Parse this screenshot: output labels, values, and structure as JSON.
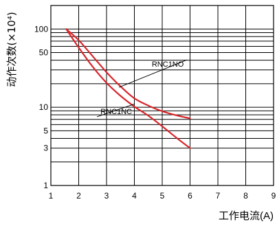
{
  "chart_data": {
    "type": "line",
    "title": "",
    "xlabel": "工作电流(A)",
    "ylabel": "动作次数(×10⁴)",
    "xlim": [
      1,
      9
    ],
    "ylim": [
      1,
      200
    ],
    "yscale": "log",
    "grid": true,
    "x_ticks": [
      "1",
      "2",
      "3",
      "4",
      "5",
      "6",
      "7",
      "8",
      "9"
    ],
    "y_ticks": [
      {
        "value": 1,
        "label": "1"
      },
      {
        "value": 3,
        "label": "3"
      },
      {
        "value": 5,
        "label": "5"
      },
      {
        "value": 10,
        "label": "10"
      },
      {
        "value": 50,
        "label": "50"
      },
      {
        "value": 100,
        "label": "100"
      }
    ],
    "y_minor_grid": [
      2,
      4,
      6,
      7,
      8,
      9,
      20,
      30,
      40,
      60,
      70,
      80,
      90
    ],
    "line_color": "#d7262b",
    "series": [
      {
        "name": "RNC1NO",
        "x": [
          1.55,
          2,
          2.5,
          3,
          3.5,
          4,
          4.5,
          5,
          5.5,
          6
        ],
        "y": [
          100,
          72,
          45,
          28,
          18.5,
          13,
          10.5,
          8.9,
          7.9,
          7.2
        ]
      },
      {
        "name": "RNC1NC",
        "x": [
          1.55,
          2,
          2.5,
          3,
          3.5,
          4,
          4.5,
          5,
          5.5,
          6
        ],
        "y": [
          100,
          58,
          33,
          20.5,
          14,
          10.2,
          7.8,
          5.7,
          4.1,
          3
        ]
      }
    ],
    "annotations": [
      {
        "text": "RNC1NO",
        "x": 5.2,
        "y": 33,
        "arrow_to": {
          "x": 3.45,
          "y": 18
        }
      },
      {
        "text": "RNC1NC",
        "x": 3.35,
        "y": 8.2,
        "arrow_to": {
          "x": 4.0,
          "y": 11
        }
      }
    ]
  }
}
